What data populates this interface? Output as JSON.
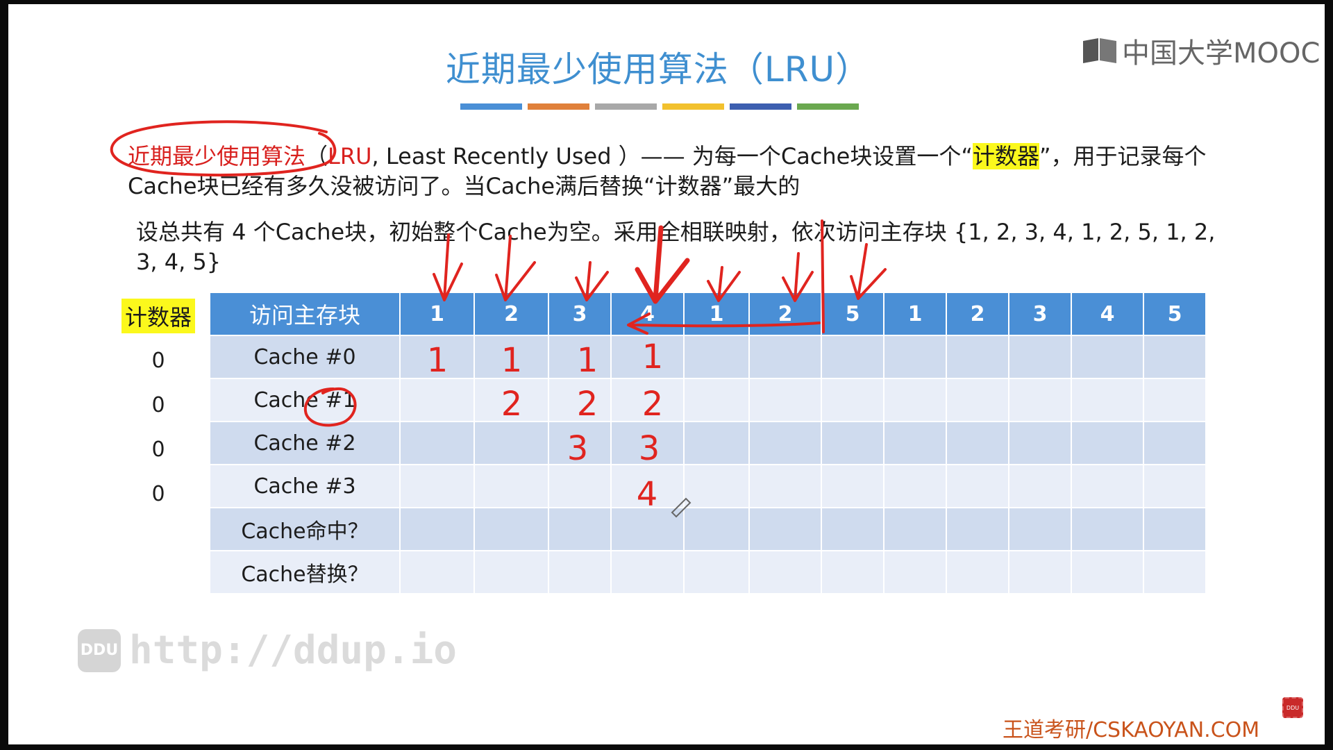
{
  "title": "近期最少使用算法（LRU）",
  "title_bar_colors": [
    "#4a8fd6",
    "#e0803a",
    "#a8a8a8",
    "#f2c12e",
    "#3d5fb0",
    "#6aa84f"
  ],
  "logo": {
    "text": "中国大学MOOC"
  },
  "para1": {
    "term": "近期最少使用算法",
    "abbr": "LRU",
    "after_abbr": ", Least Recently Used ）—— 为每一个Cache块设置一个“",
    "highlight": "计数器",
    "after_highlight": "”，用于记录每个Cache块已经有多久没被访问了。当Cache满后替换“计数器”最大的"
  },
  "para2": "设总共有 4 个Cache块，初始整个Cache为空。采用全相联映射，依次访问主存块 {1, 2, 3, 4, 1, 2, 5, 1, 2, 3, 4, 5}",
  "counter_title": "计数器",
  "counters": [
    "0",
    "0",
    "0",
    "0"
  ],
  "table": {
    "header_label": "访问主存块",
    "accesses": [
      "1",
      "2",
      "3",
      "4",
      "1",
      "2",
      "5",
      "1",
      "2",
      "3",
      "4",
      "5"
    ],
    "rows": [
      "Cache #0",
      "Cache #1",
      "Cache #2",
      "Cache #3",
      "Cache命中？",
      "Cache替换？"
    ]
  },
  "handwritten": {
    "col1": [
      "1",
      "",
      "",
      ""
    ],
    "col2": [
      "1",
      "2",
      "",
      ""
    ],
    "col3": [
      "1",
      "2",
      "3",
      ""
    ],
    "col4": [
      "1",
      "2",
      "3",
      "4"
    ]
  },
  "ink_color": "#e0241f",
  "watermark": {
    "badge": "DDU",
    "url": "http://ddup.io"
  },
  "footer": "王道考研/CSKAOYAN.COM",
  "rec_badge": "DDU"
}
